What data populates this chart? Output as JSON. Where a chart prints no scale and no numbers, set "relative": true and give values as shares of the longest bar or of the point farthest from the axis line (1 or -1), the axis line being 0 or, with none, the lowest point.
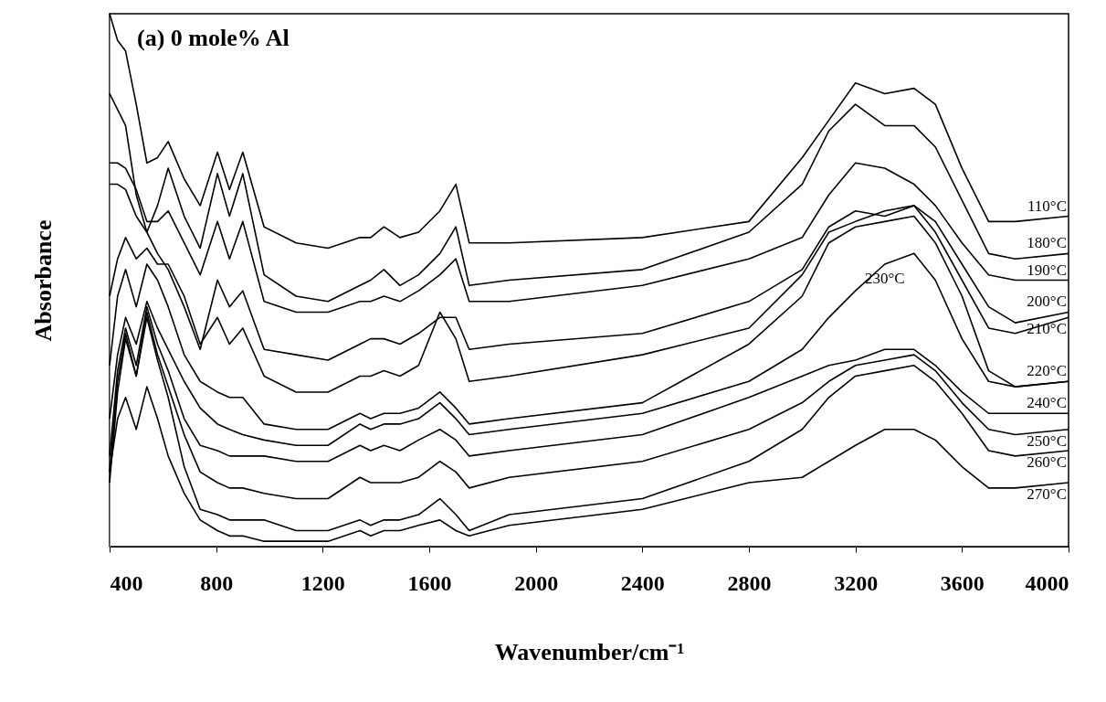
{
  "chart_data": {
    "type": "line",
    "relative": true,
    "title": "(a) 0 mole% Al",
    "xlabel": "Wavenumber/cm⁻¹",
    "ylabel": "Absorbance",
    "x": [
      400,
      430,
      460,
      500,
      540,
      580,
      620,
      680,
      740,
      805,
      850,
      900,
      980,
      1100,
      1220,
      1340,
      1380,
      1430,
      1490,
      1560,
      1640,
      1700,
      1750,
      1900,
      2400,
      2800,
      3000,
      3100,
      3200,
      3310,
      3420,
      3500,
      3600,
      3700,
      3800,
      4000
    ],
    "xlim": [
      400,
      4000
    ],
    "xticks": [
      400,
      800,
      1200,
      1600,
      2000,
      2400,
      2800,
      3200,
      3600,
      4000
    ],
    "grid": false,
    "marker": "none",
    "line_style": "solid",
    "series": [
      {
        "name": "110°C",
        "color": "#000000",
        "values": [
          1.0,
          0.95,
          0.93,
          0.83,
          0.72,
          0.73,
          0.76,
          0.69,
          0.64,
          0.74,
          0.67,
          0.74,
          0.6,
          0.57,
          0.56,
          0.58,
          0.58,
          0.6,
          0.58,
          0.59,
          0.63,
          0.68,
          0.57,
          0.57,
          0.58,
          0.61,
          0.73,
          0.8,
          0.87,
          0.85,
          0.86,
          0.83,
          0.71,
          0.61,
          0.61,
          0.62
        ]
      },
      {
        "name": "180°C",
        "color": "#000000",
        "values": [
          0.85,
          0.82,
          0.79,
          0.66,
          0.59,
          0.64,
          0.71,
          0.62,
          0.56,
          0.7,
          0.62,
          0.7,
          0.51,
          0.47,
          0.46,
          0.49,
          0.5,
          0.52,
          0.49,
          0.51,
          0.55,
          0.6,
          0.49,
          0.5,
          0.52,
          0.59,
          0.68,
          0.78,
          0.83,
          0.79,
          0.79,
          0.75,
          0.65,
          0.55,
          0.54,
          0.55
        ]
      },
      {
        "name": "190°C",
        "color": "#000000",
        "values": [
          0.72,
          0.72,
          0.71,
          0.67,
          0.61,
          0.61,
          0.63,
          0.57,
          0.51,
          0.61,
          0.54,
          0.61,
          0.46,
          0.44,
          0.44,
          0.46,
          0.46,
          0.47,
          0.46,
          0.48,
          0.51,
          0.54,
          0.46,
          0.46,
          0.49,
          0.54,
          0.58,
          0.66,
          0.72,
          0.71,
          0.68,
          0.64,
          0.57,
          0.51,
          0.5,
          0.5
        ]
      },
      {
        "name": "200°C",
        "color": "#000000",
        "values": [
          0.68,
          0.68,
          0.67,
          0.62,
          0.59,
          0.55,
          0.52,
          0.45,
          0.37,
          0.5,
          0.45,
          0.48,
          0.37,
          0.36,
          0.35,
          0.38,
          0.39,
          0.39,
          0.38,
          0.4,
          0.43,
          0.43,
          0.37,
          0.38,
          0.4,
          0.46,
          0.52,
          0.6,
          0.63,
          0.62,
          0.64,
          0.61,
          0.53,
          0.45,
          0.42,
          0.44
        ]
      },
      {
        "name": "210°C",
        "color": "#000000",
        "values": [
          0.47,
          0.54,
          0.58,
          0.54,
          0.56,
          0.53,
          0.53,
          0.47,
          0.38,
          0.43,
          0.38,
          0.41,
          0.32,
          0.29,
          0.29,
          0.32,
          0.32,
          0.33,
          0.32,
          0.34,
          0.44,
          0.39,
          0.31,
          0.32,
          0.36,
          0.41,
          0.51,
          0.59,
          0.61,
          0.63,
          0.64,
          0.59,
          0.5,
          0.41,
          0.4,
          0.43
        ]
      },
      {
        "name": "220°C",
        "color": "#000000",
        "values": [
          0.34,
          0.47,
          0.52,
          0.45,
          0.53,
          0.5,
          0.45,
          0.36,
          0.31,
          0.29,
          0.28,
          0.28,
          0.23,
          0.22,
          0.22,
          0.25,
          0.24,
          0.25,
          0.25,
          0.26,
          0.29,
          0.26,
          0.23,
          0.24,
          0.27,
          0.38,
          0.47,
          0.57,
          0.6,
          0.61,
          0.62,
          0.57,
          0.47,
          0.33,
          0.3,
          0.31
        ]
      },
      {
        "color": "#000000",
        "values": [
          0.24,
          0.36,
          0.43,
          0.38,
          0.46,
          0.41,
          0.37,
          0.31,
          0.26,
          0.23,
          0.22,
          0.21,
          0.2,
          0.19,
          0.19,
          0.23,
          0.22,
          0.23,
          0.23,
          0.24,
          0.27,
          0.24,
          0.21,
          0.22,
          0.25,
          0.31,
          0.37,
          0.43,
          0.48,
          0.53,
          0.55,
          0.5,
          0.39,
          0.31,
          0.3,
          0.31
        ]
      },
      {
        "name": "240°C",
        "color": "#000000",
        "values": [
          0.17,
          0.33,
          0.41,
          0.34,
          0.45,
          0.38,
          0.33,
          0.24,
          0.19,
          0.18,
          0.17,
          0.17,
          0.17,
          0.16,
          0.16,
          0.19,
          0.18,
          0.19,
          0.18,
          0.2,
          0.22,
          0.2,
          0.17,
          0.18,
          0.21,
          0.28,
          0.32,
          0.34,
          0.35,
          0.37,
          0.37,
          0.34,
          0.29,
          0.25,
          0.25,
          0.25
        ]
      },
      {
        "name": "250°C",
        "color": "#000000",
        "values": [
          0.14,
          0.31,
          0.4,
          0.32,
          0.44,
          0.36,
          0.3,
          0.21,
          0.14,
          0.12,
          0.11,
          0.11,
          0.1,
          0.09,
          0.09,
          0.13,
          0.12,
          0.12,
          0.12,
          0.13,
          0.16,
          0.14,
          0.11,
          0.13,
          0.16,
          0.22,
          0.27,
          0.31,
          0.34,
          0.35,
          0.36,
          0.33,
          0.27,
          0.22,
          0.21,
          0.22
        ]
      },
      {
        "name": "260°C",
        "color": "#000000",
        "values": [
          0.12,
          0.29,
          0.39,
          0.32,
          0.43,
          0.35,
          0.28,
          0.15,
          0.07,
          0.06,
          0.05,
          0.05,
          0.05,
          0.03,
          0.03,
          0.05,
          0.04,
          0.05,
          0.05,
          0.06,
          0.09,
          0.06,
          0.03,
          0.06,
          0.09,
          0.16,
          0.22,
          0.28,
          0.32,
          0.33,
          0.34,
          0.31,
          0.25,
          0.18,
          0.17,
          0.18
        ]
      },
      {
        "name": "270°C",
        "color": "#000000",
        "values": [
          0.14,
          0.24,
          0.28,
          0.22,
          0.3,
          0.24,
          0.17,
          0.1,
          0.05,
          0.03,
          0.02,
          0.02,
          0.01,
          0.01,
          0.01,
          0.03,
          0.02,
          0.03,
          0.03,
          0.04,
          0.05,
          0.03,
          0.02,
          0.04,
          0.07,
          0.12,
          0.13,
          0.16,
          0.19,
          0.22,
          0.22,
          0.2,
          0.15,
          0.11,
          0.11,
          0.12
        ]
      }
    ],
    "annotations": [
      {
        "text": "230°C",
        "x": 3310,
        "y": 0.53
      }
    ]
  }
}
